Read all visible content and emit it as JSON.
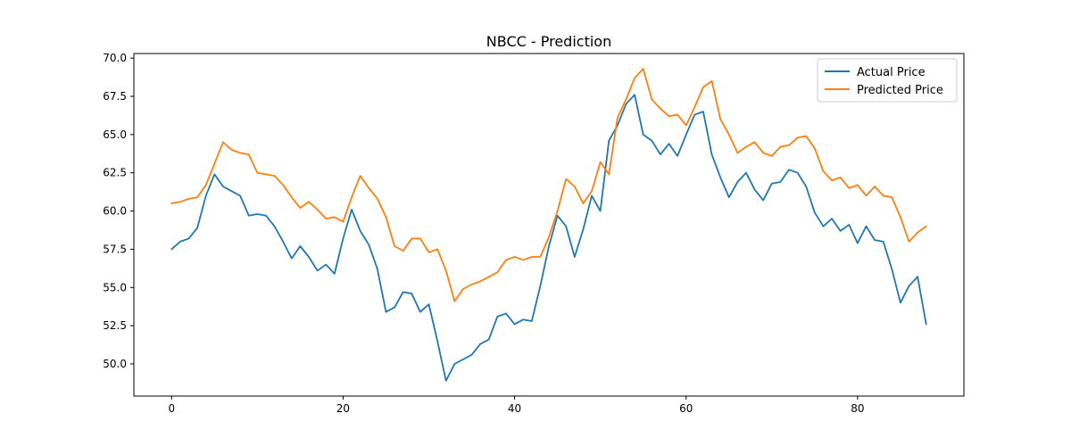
{
  "chart_data": {
    "type": "line",
    "title": "NBCC - Prediction",
    "xlabel": "",
    "ylabel": "",
    "xlim": [
      -4.4,
      92.4
    ],
    "ylim": [
      47.9,
      70.3
    ],
    "xticks": [
      0,
      20,
      40,
      60,
      80
    ],
    "yticks": [
      50.0,
      52.5,
      55.0,
      57.5,
      60.0,
      62.5,
      65.0,
      67.5,
      70.0
    ],
    "xtick_labels": [
      "0",
      "20",
      "40",
      "60",
      "80"
    ],
    "ytick_labels": [
      "50.0",
      "52.5",
      "55.0",
      "57.5",
      "60.0",
      "62.5",
      "65.0",
      "67.5",
      "70.0"
    ],
    "grid": false,
    "legend_position": "top-right",
    "x": [
      0,
      1,
      2,
      3,
      4,
      5,
      6,
      7,
      8,
      9,
      10,
      11,
      12,
      13,
      14,
      15,
      16,
      17,
      18,
      19,
      20,
      21,
      22,
      23,
      24,
      25,
      26,
      27,
      28,
      29,
      30,
      31,
      32,
      33,
      34,
      35,
      36,
      37,
      38,
      39,
      40,
      41,
      42,
      43,
      44,
      45,
      46,
      47,
      48,
      49,
      50,
      51,
      52,
      53,
      54,
      55,
      56,
      57,
      58,
      59,
      60,
      61,
      62,
      63,
      64,
      65,
      66,
      67,
      68,
      69,
      70,
      71,
      72,
      73,
      74,
      75,
      76,
      77,
      78,
      79,
      80,
      81,
      82,
      83,
      84,
      85,
      86,
      87,
      88
    ],
    "series": [
      {
        "name": "Actual Price",
        "color": "#1f77b4",
        "values": [
          57.5,
          58.0,
          58.2,
          58.9,
          61.0,
          62.4,
          61.6,
          61.3,
          61.0,
          59.7,
          59.8,
          59.7,
          59.0,
          58.0,
          56.9,
          57.7,
          57.0,
          56.1,
          56.5,
          55.9,
          58.2,
          60.1,
          58.7,
          57.8,
          56.2,
          53.4,
          53.7,
          54.7,
          54.6,
          53.4,
          53.9,
          51.5,
          48.9,
          50.0,
          50.3,
          50.6,
          51.3,
          51.6,
          53.1,
          53.3,
          52.6,
          52.9,
          52.8,
          55.1,
          57.7,
          59.7,
          59.0,
          57.0,
          58.8,
          61.0,
          60.0,
          64.6,
          65.6,
          67.0,
          67.6,
          65.0,
          64.6,
          63.7,
          64.4,
          63.6,
          65.0,
          66.3,
          66.5,
          63.7,
          62.2,
          60.9,
          61.9,
          62.5,
          61.4,
          60.7,
          61.8,
          61.9,
          62.7,
          62.5,
          61.6,
          59.9,
          59.0,
          59.5,
          58.7,
          59.1,
          57.9,
          59.0,
          58.1,
          58.0,
          56.2,
          54.0,
          55.1,
          55.7,
          52.6
        ]
      },
      {
        "name": "Predicted Price",
        "color": "#ff7f0e",
        "values": [
          60.5,
          60.6,
          60.8,
          60.9,
          61.7,
          63.1,
          64.5,
          64.0,
          63.8,
          63.7,
          62.5,
          62.4,
          62.3,
          61.7,
          60.9,
          60.2,
          60.6,
          60.1,
          59.5,
          59.6,
          59.3,
          60.9,
          62.3,
          61.5,
          60.8,
          59.6,
          57.7,
          57.4,
          58.2,
          58.2,
          57.3,
          57.5,
          56.1,
          54.1,
          54.9,
          55.2,
          55.4,
          55.7,
          56.0,
          56.8,
          57.0,
          56.8,
          57.0,
          57.0,
          58.3,
          60.0,
          62.1,
          61.6,
          60.5,
          61.3,
          63.2,
          62.4,
          66.1,
          67.3,
          68.7,
          69.3,
          67.3,
          66.7,
          66.2,
          66.3,
          65.6,
          66.8,
          68.1,
          68.5,
          66.0,
          65.0,
          63.8,
          64.2,
          64.5,
          63.8,
          63.6,
          64.2,
          64.3,
          64.8,
          64.9,
          64.1,
          62.6,
          62.0,
          62.2,
          61.5,
          61.7,
          61.0,
          61.6,
          61.0,
          60.9,
          59.6,
          58.0,
          58.6,
          59.0
        ]
      }
    ]
  }
}
